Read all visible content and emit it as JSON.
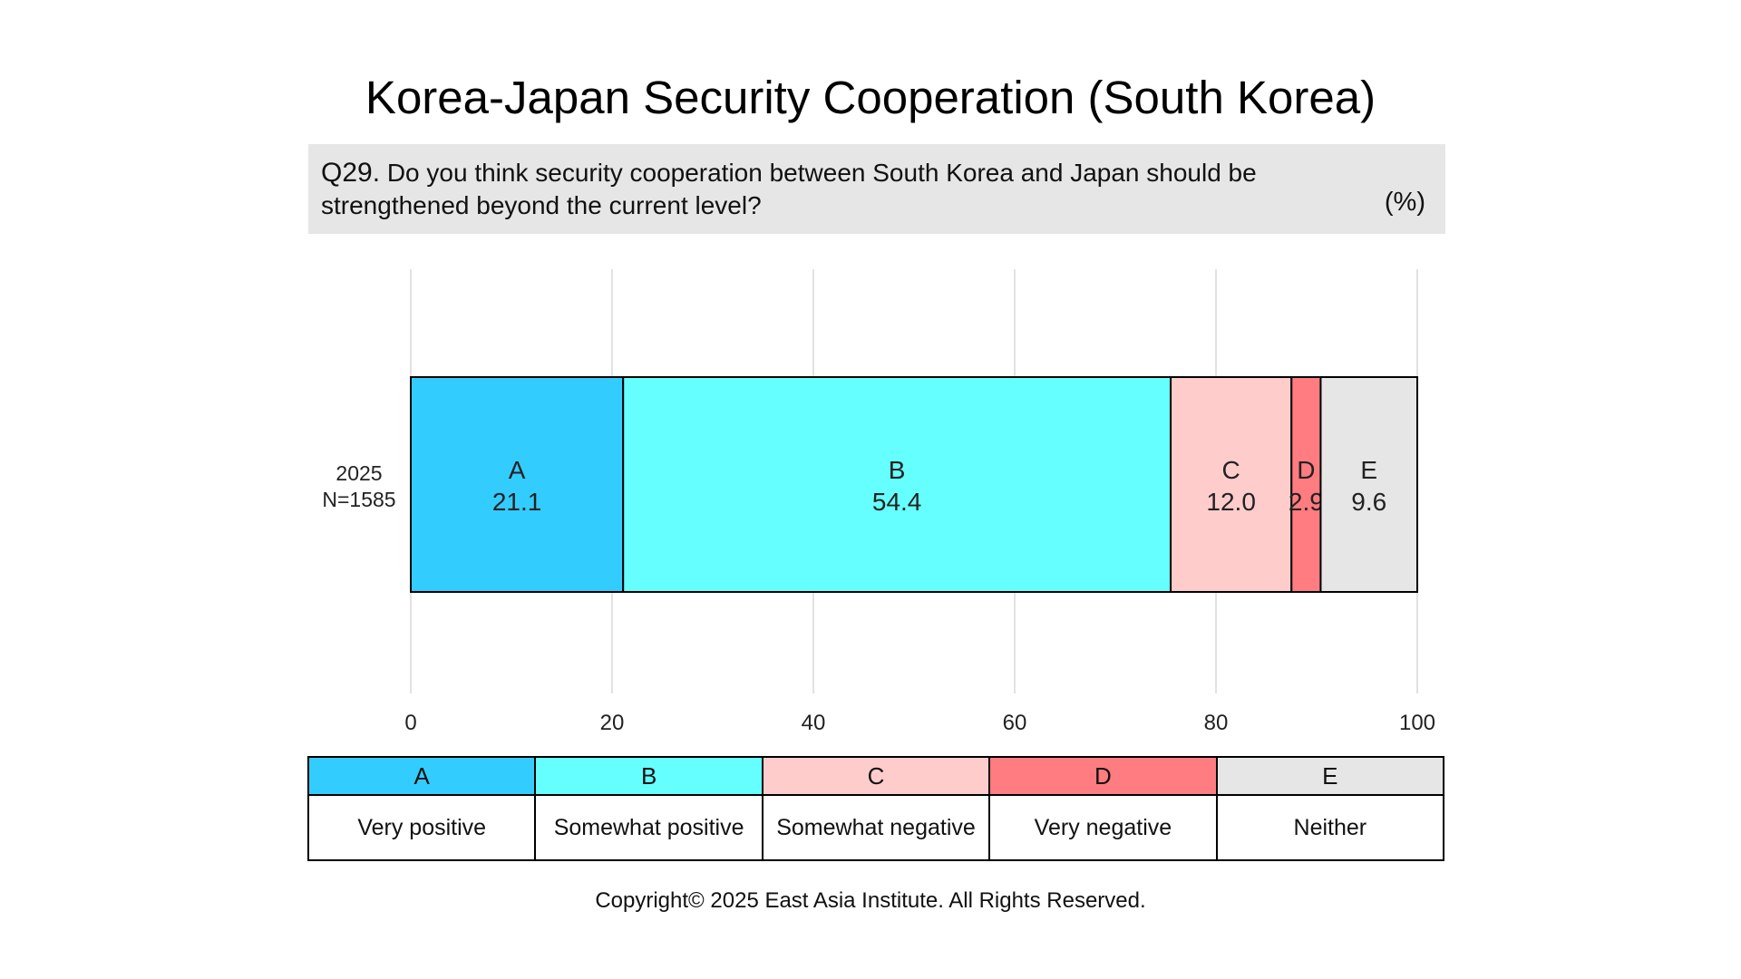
{
  "title": "Korea-Japan Security Cooperation (South Korea)",
  "question": {
    "number": "Q29.",
    "text": "Do you think security cooperation between South Korea and Japan should be strengthened beyond the current level?",
    "unit": "(%)"
  },
  "chart_data": {
    "type": "bar",
    "orientation": "horizontal-stacked",
    "categories": [
      "2025\nN=1585"
    ],
    "category_lines": [
      [
        "2025",
        "N=1585"
      ]
    ],
    "series": [
      {
        "key": "A",
        "name": "Very positive",
        "color": "#33ccff",
        "values": [
          21.1
        ],
        "label": "21.1"
      },
      {
        "key": "B",
        "name": "Somewhat positive",
        "color": "#66ffff",
        "values": [
          54.4
        ],
        "label": "54.4"
      },
      {
        "key": "C",
        "name": "Somewhat negative",
        "color": "#ffcccc",
        "values": [
          12.0
        ],
        "label": "12.0"
      },
      {
        "key": "D",
        "name": "Very negative",
        "color": "#ff7c80",
        "values": [
          2.9
        ],
        "label": "2.9"
      },
      {
        "key": "E",
        "name": "Neither",
        "color": "#e6e6e6",
        "values": [
          9.6
        ],
        "label": "9.6"
      }
    ],
    "xlim": [
      0,
      100
    ],
    "xticks": [
      "0",
      "20",
      "40",
      "60",
      "80",
      "100"
    ],
    "xtick_values": [
      0,
      20,
      40,
      60,
      80,
      100
    ],
    "grid": true,
    "legend_placement": "bottom-table"
  },
  "copyright": "Copyright© 2025 East Asia Institute. All Rights Reserved."
}
